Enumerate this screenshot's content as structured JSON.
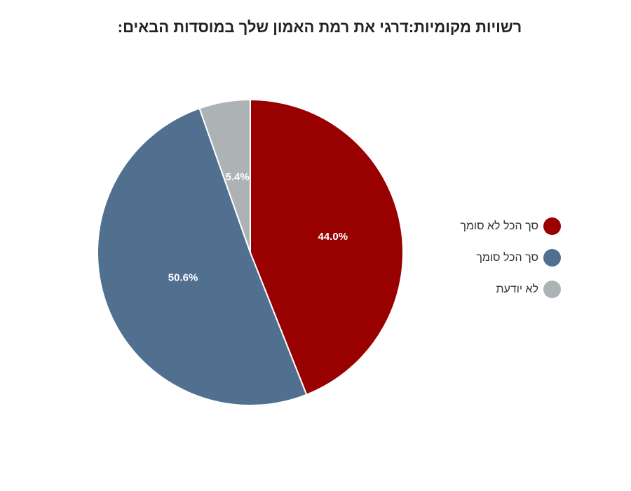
{
  "chart_data": {
    "type": "pie",
    "title": "רשויות מקומיות:דרגי את רמת האמון שלך במוסדות הבאים:",
    "slices": [
      {
        "label": "סך הכל לא סומך",
        "value": 44.0,
        "display": "44.0%",
        "color": "#990000"
      },
      {
        "label": "סך הכל סומך",
        "value": 50.6,
        "display": "50.6%",
        "color": "#516f8f"
      },
      {
        "label": "לא יודעת",
        "value": 5.4,
        "display": "5.4%",
        "color": "#adb3b4"
      }
    ],
    "legend_position": "right",
    "start": "top",
    "direction": "clockwise"
  }
}
